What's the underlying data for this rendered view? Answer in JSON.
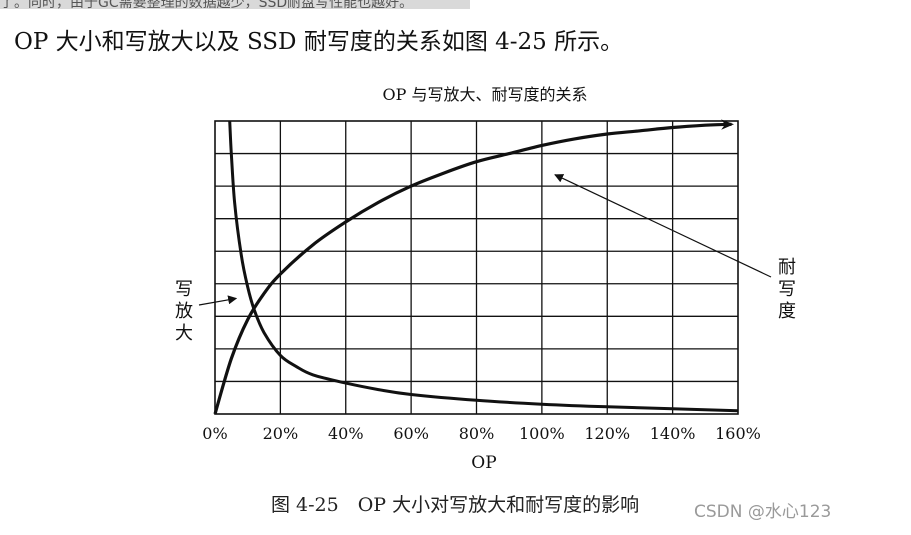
{
  "page": {
    "top_text": "了。同时，由于GC需要整理的数据越少，SSD耐盘写性能也越好。",
    "intro": "OP 大小和写放大以及 SSD 耐写度的关系如图 4-25 所示。",
    "caption": "图 4-25　OP 大小对写放大和耐写度的影响",
    "watermark": "CSDN @水心123"
  },
  "chart_data": {
    "type": "line",
    "title": "OP 与写放大、耐写度的关系",
    "xlabel": "OP",
    "ylabel": "",
    "x_ticks": [
      "0%",
      "20%",
      "40%",
      "60%",
      "80%",
      "100%",
      "120%",
      "140%",
      "160%"
    ],
    "xlim": [
      0,
      160
    ],
    "ylim": [
      0,
      9
    ],
    "y_gridlines": 9,
    "grid": true,
    "series": [
      {
        "name": "写放大",
        "x": [
          4.5,
          5,
          6,
          8,
          10,
          12,
          15,
          20,
          25,
          30,
          40,
          50,
          60,
          80,
          100,
          120,
          140,
          160
        ],
        "y": [
          9.0,
          8.0,
          6.5,
          4.9,
          3.9,
          3.2,
          2.5,
          1.8,
          1.45,
          1.2,
          0.95,
          0.75,
          0.6,
          0.42,
          0.3,
          0.22,
          0.16,
          0.1
        ]
      },
      {
        "name": "耐写度",
        "x": [
          0,
          5,
          10,
          15,
          20,
          30,
          40,
          50,
          60,
          70,
          80,
          90,
          100,
          110,
          120,
          130,
          140,
          150,
          158
        ],
        "y": [
          0,
          1.7,
          2.9,
          3.7,
          4.3,
          5.2,
          5.9,
          6.5,
          7.0,
          7.4,
          7.75,
          8.0,
          8.25,
          8.45,
          8.6,
          8.7,
          8.8,
          8.87,
          8.9
        ]
      }
    ],
    "annotations": [
      {
        "text": "写放大",
        "points_to": "写放大",
        "side": "left"
      },
      {
        "text": "耐写度",
        "points_to": "耐写度",
        "side": "right"
      }
    ]
  }
}
